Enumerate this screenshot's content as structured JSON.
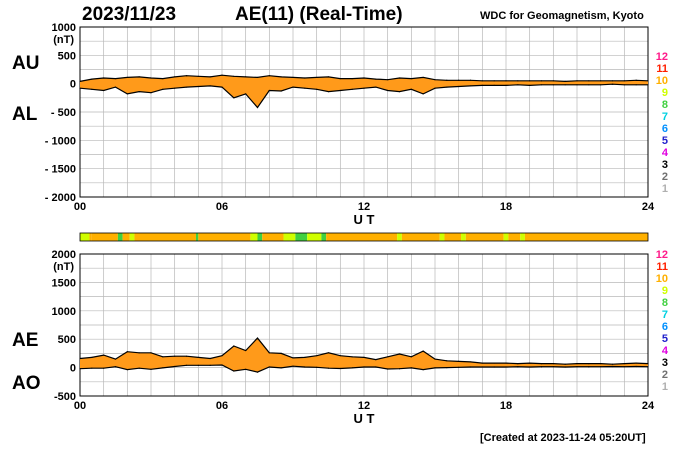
{
  "header": {
    "date": "2023/11/23",
    "title": "AE(11) (Real-Time)",
    "source": "WDC for Geomagnetism, Kyoto"
  },
  "footer": {
    "created": "[Created at 2023-11-24 05:20UT]"
  },
  "colors": {
    "fill": "#ff9a1a",
    "grid": "#b8b8b8",
    "stations": [
      "#b0b0b0",
      "#707070",
      "#000000",
      "#e000e0",
      "#2020cc",
      "#0090ff",
      "#00d0e0",
      "#40d040",
      "#d0ff00",
      "#ffb000",
      "#ff2000",
      "#ff1a8a"
    ]
  },
  "chart_data": [
    {
      "id": "au-al",
      "type": "area",
      "labels": {
        "upper": "AU",
        "lower": "AL"
      },
      "unit": "(nT)",
      "xlabel": "U T",
      "x_ticks": [
        "00",
        "06",
        "12",
        "18",
        "24"
      ],
      "y_ticks": [
        "1000",
        "500",
        "0",
        "- 500",
        "- 1000",
        "- 1500",
        "- 2000"
      ],
      "y_tick_values": [
        1000,
        500,
        0,
        -500,
        -1000,
        -1500,
        -2000
      ],
      "xlim": [
        0,
        24
      ],
      "ylim": [
        -2000,
        1000
      ],
      "station_legend": [
        "12",
        "11",
        "10",
        "9",
        "8",
        "7",
        "6",
        "5",
        "4",
        "3",
        "2",
        "1"
      ],
      "series": [
        {
          "name": "AU",
          "x": [
            0,
            0.5,
            1,
            1.5,
            2,
            2.5,
            3,
            3.5,
            4,
            4.5,
            5,
            5.5,
            6,
            6.5,
            7,
            7.5,
            8,
            8.5,
            9,
            9.5,
            10,
            10.5,
            11,
            11.5,
            12,
            12.5,
            13,
            13.5,
            14,
            14.5,
            15,
            15.5,
            16,
            16.5,
            17,
            17.5,
            18,
            18.5,
            19,
            19.5,
            20,
            20.5,
            21,
            21.5,
            22,
            22.5,
            23,
            23.5,
            24
          ],
          "values": [
            40,
            80,
            100,
            90,
            110,
            120,
            100,
            90,
            120,
            140,
            130,
            120,
            150,
            130,
            120,
            110,
            140,
            120,
            110,
            100,
            110,
            120,
            90,
            90,
            100,
            80,
            70,
            100,
            90,
            110,
            70,
            60,
            60,
            60,
            50,
            50,
            50,
            50,
            50,
            50,
            50,
            40,
            50,
            50,
            50,
            50,
            50,
            60,
            50
          ]
        },
        {
          "name": "AL",
          "x": [
            0,
            0.5,
            1,
            1.5,
            2,
            2.5,
            3,
            3.5,
            4,
            4.5,
            5,
            5.5,
            6,
            6.5,
            7,
            7.5,
            8,
            8.5,
            9,
            9.5,
            10,
            10.5,
            11,
            11.5,
            12,
            12.5,
            13,
            13.5,
            14,
            14.5,
            15,
            15.5,
            16,
            16.5,
            17,
            17.5,
            18,
            18.5,
            19,
            19.5,
            20,
            20.5,
            21,
            21.5,
            22,
            22.5,
            23,
            23.5,
            24
          ],
          "values": [
            -80,
            -100,
            -120,
            -60,
            -180,
            -140,
            -160,
            -100,
            -80,
            -60,
            -50,
            -40,
            -60,
            -250,
            -180,
            -420,
            -120,
            -130,
            -60,
            -80,
            -100,
            -140,
            -120,
            -100,
            -80,
            -60,
            -120,
            -140,
            -100,
            -180,
            -80,
            -60,
            -50,
            -40,
            -30,
            -30,
            -30,
            -20,
            -30,
            -20,
            -20,
            -20,
            -20,
            -20,
            -20,
            -10,
            -20,
            -20,
            -20
          ]
        }
      ]
    },
    {
      "id": "ae-ao",
      "type": "area",
      "labels": {
        "upper": "AE",
        "lower": "AO"
      },
      "unit": "(nT)",
      "xlabel": "U T",
      "x_ticks": [
        "00",
        "06",
        "12",
        "18",
        "24"
      ],
      "y_ticks": [
        "2000",
        "1500",
        "1000",
        "500",
        "0",
        "-500"
      ],
      "y_tick_values": [
        2000,
        1500,
        1000,
        500,
        0,
        -500
      ],
      "xlim": [
        0,
        24
      ],
      "ylim": [
        -500,
        2000
      ],
      "station_legend": [
        "12",
        "11",
        "10",
        "9",
        "8",
        "7",
        "6",
        "5",
        "4",
        "3",
        "2",
        "1"
      ],
      "series": [
        {
          "name": "AE",
          "x": [
            0,
            0.5,
            1,
            1.5,
            2,
            2.5,
            3,
            3.5,
            4,
            4.5,
            5,
            5.5,
            6,
            6.5,
            7,
            7.5,
            8,
            8.5,
            9,
            9.5,
            10,
            10.5,
            11,
            11.5,
            12,
            12.5,
            13,
            13.5,
            14,
            14.5,
            15,
            15.5,
            16,
            16.5,
            17,
            17.5,
            18,
            18.5,
            19,
            19.5,
            20,
            20.5,
            21,
            21.5,
            22,
            22.5,
            23,
            23.5,
            24
          ],
          "values": [
            160,
            180,
            220,
            150,
            280,
            260,
            260,
            190,
            200,
            200,
            180,
            160,
            210,
            380,
            300,
            520,
            260,
            250,
            170,
            180,
            210,
            260,
            210,
            190,
            180,
            140,
            190,
            240,
            190,
            290,
            150,
            120,
            110,
            100,
            80,
            80,
            80,
            70,
            80,
            70,
            70,
            60,
            70,
            70,
            70,
            60,
            70,
            80,
            70
          ]
        },
        {
          "name": "AO",
          "x": [
            0,
            0.5,
            1,
            1.5,
            2,
            2.5,
            3,
            3.5,
            4,
            4.5,
            5,
            5.5,
            6,
            6.5,
            7,
            7.5,
            8,
            8.5,
            9,
            9.5,
            10,
            10.5,
            11,
            11.5,
            12,
            12.5,
            13,
            13.5,
            14,
            14.5,
            15,
            15.5,
            16,
            16.5,
            17,
            17.5,
            18,
            18.5,
            19,
            19.5,
            20,
            20.5,
            21,
            21.5,
            22,
            22.5,
            23,
            23.5,
            24
          ],
          "values": [
            -20,
            -10,
            -10,
            15,
            -35,
            -10,
            -30,
            -5,
            20,
            40,
            40,
            40,
            45,
            -60,
            -30,
            -80,
            10,
            -5,
            25,
            10,
            5,
            -10,
            -15,
            -5,
            10,
            10,
            -25,
            -20,
            -5,
            -35,
            -5,
            0,
            5,
            10,
            10,
            10,
            10,
            15,
            10,
            15,
            15,
            10,
            15,
            15,
            15,
            20,
            15,
            20,
            15
          ]
        }
      ]
    }
  ],
  "station_bar": {
    "hours": [
      0,
      0.4,
      0.5,
      1.6,
      1.8,
      2.1,
      2.3,
      4.9,
      5.0,
      7.2,
      7.5,
      7.7,
      8.6,
      9.1,
      9.6,
      10.2,
      10.4,
      13.4,
      13.6,
      15.2,
      15.4,
      16.1,
      16.3,
      17.9,
      18.1,
      18.6,
      18.8,
      24
    ],
    "levels": [
      9,
      10,
      10,
      8,
      10,
      9,
      10,
      8,
      10,
      9,
      8,
      10,
      9,
      8,
      9,
      8,
      10,
      9,
      10,
      9,
      10,
      9,
      10,
      9,
      10,
      9,
      10
    ]
  }
}
